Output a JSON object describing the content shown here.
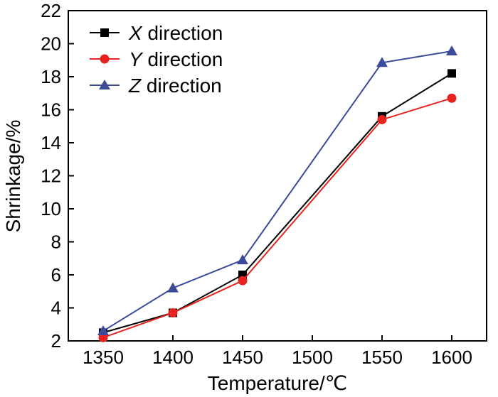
{
  "chart_data": {
    "type": "line",
    "xlabel": "Temperature/℃",
    "ylabel": "Shrinkage/%",
    "x": [
      1350,
      1400,
      1450,
      1550,
      1600
    ],
    "xlim": [
      1325,
      1625
    ],
    "xticks": [
      1350,
      1400,
      1450,
      1500,
      1550,
      1600
    ],
    "ylim": [
      2,
      22
    ],
    "yticks": [
      2,
      4,
      6,
      8,
      10,
      12,
      14,
      16,
      18,
      20,
      22
    ],
    "grid": false,
    "legend_position": "top-left",
    "series": [
      {
        "name": "X direction",
        "var": "X",
        "rest": " direction",
        "marker": "square",
        "color": "#000000",
        "values": [
          2.5,
          3.7,
          6.0,
          15.6,
          18.2
        ]
      },
      {
        "name": "Y direction",
        "var": "Y",
        "rest": " direction",
        "marker": "circle",
        "color": "#e8231f",
        "values": [
          2.2,
          3.7,
          5.65,
          15.4,
          16.7
        ]
      },
      {
        "name": "Z direction",
        "var": "Z",
        "rest": " direction",
        "marker": "triangle",
        "color": "#3c4a9a",
        "values": [
          2.6,
          5.2,
          6.9,
          18.85,
          19.55
        ]
      }
    ]
  }
}
